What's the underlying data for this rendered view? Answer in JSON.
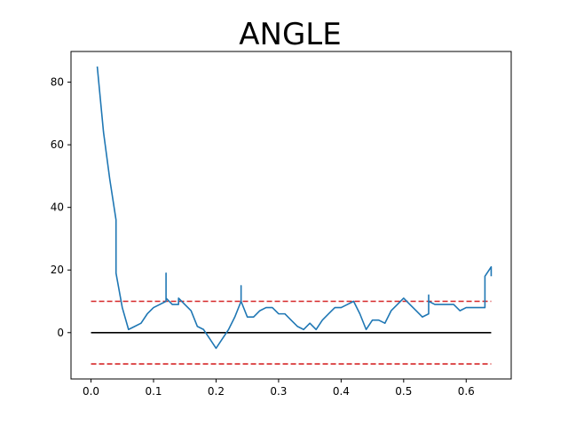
{
  "chart_data": {
    "type": "line",
    "title": "ANGLE",
    "xlabel": "",
    "ylabel": "",
    "xlim": [
      -0.032,
      0.672
    ],
    "ylim": [
      -14.8,
      89.8
    ],
    "xticks": [
      0.0,
      0.1,
      0.2,
      0.3,
      0.4,
      0.5,
      0.6
    ],
    "xtick_labels": [
      "0.0",
      "0.1",
      "0.2",
      "0.3",
      "0.4",
      "0.5",
      "0.6"
    ],
    "yticks": [
      0,
      20,
      40,
      60,
      80
    ],
    "ytick_labels": [
      "0",
      "20",
      "40",
      "60",
      "80"
    ],
    "grid": false,
    "series": [
      {
        "color": "#1f77b4",
        "style": "solid",
        "x": [
          0.01,
          0.02,
          0.03,
          0.04,
          0.04,
          0.05,
          0.06,
          0.07,
          0.08,
          0.09,
          0.1,
          0.11,
          0.12,
          0.12,
          0.12,
          0.13,
          0.14,
          0.14,
          0.15,
          0.16,
          0.17,
          0.18,
          0.19,
          0.2,
          0.21,
          0.22,
          0.23,
          0.24,
          0.24,
          0.24,
          0.25,
          0.26,
          0.27,
          0.28,
          0.29,
          0.3,
          0.31,
          0.32,
          0.33,
          0.34,
          0.35,
          0.36,
          0.37,
          0.38,
          0.39,
          0.4,
          0.41,
          0.42,
          0.43,
          0.44,
          0.45,
          0.46,
          0.47,
          0.48,
          0.49,
          0.5,
          0.51,
          0.52,
          0.53,
          0.54,
          0.54,
          0.54,
          0.55,
          0.56,
          0.57,
          0.58,
          0.59,
          0.6,
          0.61,
          0.62,
          0.63,
          0.63,
          0.64,
          0.64
        ],
        "values": [
          85,
          64,
          49,
          36,
          19,
          8,
          1,
          2,
          3,
          6,
          8,
          9,
          10,
          19,
          11,
          9,
          9,
          11,
          9,
          7,
          2,
          1,
          -2,
          -5,
          -2,
          1,
          5,
          10,
          15,
          10,
          5,
          5,
          7,
          8,
          8,
          6,
          6,
          4,
          2,
          1,
          3,
          1,
          4,
          6,
          8,
          8,
          9,
          10,
          6,
          1,
          4,
          4,
          3,
          7,
          9,
          11,
          9,
          7,
          5,
          6,
          12,
          10,
          9,
          9,
          9,
          9,
          7,
          8,
          8,
          8,
          8,
          18,
          21,
          18
        ]
      },
      {
        "color": "#000000",
        "style": "solid",
        "x": [
          0.0,
          0.64
        ],
        "values": [
          0,
          0
        ]
      },
      {
        "color": "#d62728",
        "style": "dashed",
        "x": [
          0.0,
          0.64
        ],
        "values": [
          10,
          10
        ]
      },
      {
        "color": "#d62728",
        "style": "dashed",
        "x": [
          0.0,
          0.64
        ],
        "values": [
          -10,
          -10
        ]
      }
    ]
  }
}
